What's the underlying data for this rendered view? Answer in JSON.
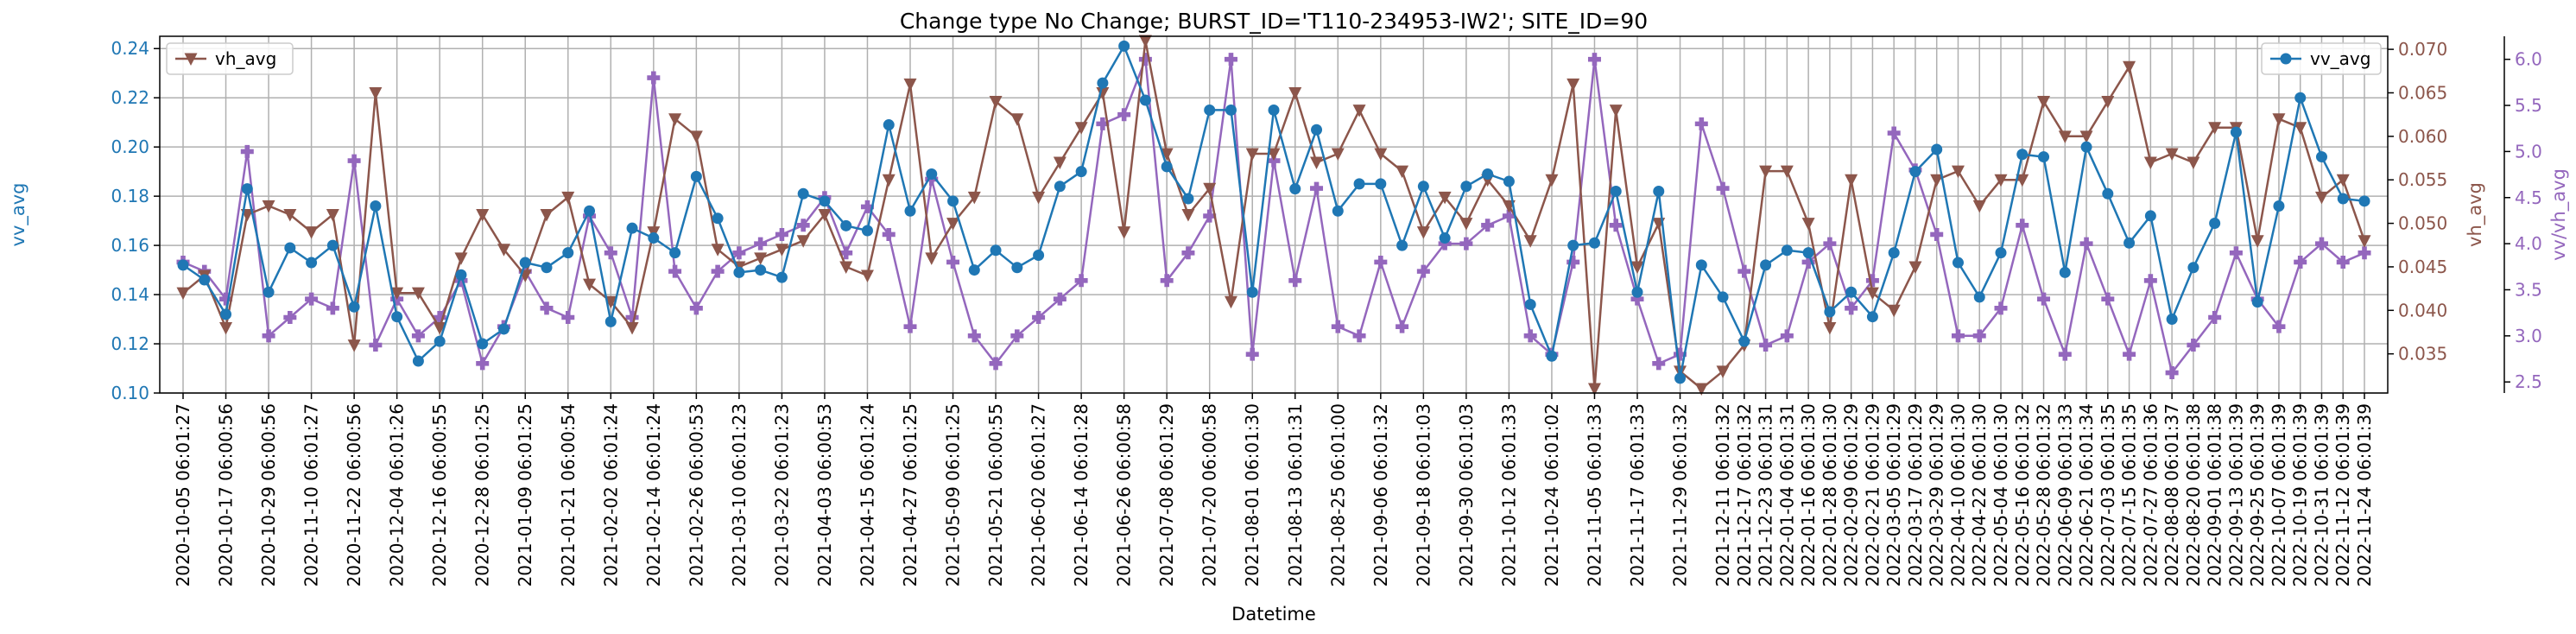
{
  "chart_data": {
    "type": "line",
    "title": "Change type No Change; BURST_ID='T110-234953-IW2'; SITE_ID=90",
    "xlabel": "Datetime",
    "x": [
      "2020-10-05 06:01:27",
      "2020-10-11 06:01:27",
      "2020-10-17 06:00:56",
      "2020-10-23 06:00:56",
      "2020-10-29 06:00:56",
      "2020-11-04 06:01:27",
      "2020-11-10 06:01:27",
      "2020-11-16 06:00:56",
      "2020-11-22 06:00:56",
      "2020-11-28 06:00:56",
      "2020-12-04 06:01:26",
      "2020-12-10 06:00:56",
      "2020-12-16 06:00:55",
      "2020-12-22 06:00:55",
      "2020-12-28 06:01:25",
      "2021-01-03 06:01:25",
      "2021-01-09 06:01:25",
      "2021-01-15 06:00:54",
      "2021-01-21 06:00:54",
      "2021-01-27 06:00:53",
      "2021-02-02 06:01:24",
      "2021-02-08 06:01:24",
      "2021-02-14 06:01:24",
      "2021-02-20 06:00:53",
      "2021-02-26 06:00:53",
      "2021-03-04 06:00:53",
      "2021-03-10 06:01:23",
      "2021-03-16 06:01:23",
      "2021-03-22 06:01:23",
      "2021-03-28 06:00:53",
      "2021-04-03 06:00:53",
      "2021-04-09 06:00:54",
      "2021-04-15 06:01:24",
      "2021-04-21 06:01:24",
      "2021-04-27 06:01:25",
      "2021-05-03 06:00:54",
      "2021-05-09 06:01:25",
      "2021-05-15 06:00:55",
      "2021-05-21 06:00:55",
      "2021-05-27 06:00:55",
      "2021-06-02 06:01:27",
      "2021-06-08 06:01:27",
      "2021-06-14 06:01:28",
      "2021-06-20 06:00:57",
      "2021-06-26 06:00:58",
      "2021-07-02 06:01:29",
      "2021-07-08 06:01:29",
      "2021-07-14 06:00:58",
      "2021-07-20 06:00:58",
      "2021-07-26 06:00:59",
      "2021-08-01 06:01:30",
      "2021-08-07 06:01:30",
      "2021-08-13 06:01:31",
      "2021-08-19 06:01:00",
      "2021-08-25 06:01:00",
      "2021-08-31 06:01:31",
      "2021-09-06 06:01:32",
      "2021-09-12 06:01:02",
      "2021-09-18 06:01:03",
      "2021-09-24 06:01:02",
      "2021-09-30 06:01:03",
      "2021-10-06 06:01:32",
      "2021-10-12 06:01:33",
      "2021-10-18 06:01:02",
      "2021-10-24 06:01:02",
      "2021-10-30 06:01:03",
      "2021-11-05 06:01:33",
      "2021-11-11 06:01:03",
      "2021-11-17 06:01:33",
      "2021-11-23 06:01:32",
      "2021-11-29 06:01:32",
      "2021-12-05 06:01:32",
      "2021-12-11 06:01:32",
      "2021-12-17 06:01:32",
      "2021-12-23 06:01:31",
      "2022-01-04 06:01:31",
      "2022-01-16 06:01:30",
      "2022-01-28 06:01:30",
      "2022-02-09 06:01:29",
      "2022-02-21 06:01:29",
      "2022-03-05 06:01:29",
      "2022-03-17 06:01:29",
      "2022-03-29 06:01:29",
      "2022-04-10 06:01:30",
      "2022-04-22 06:01:30",
      "2022-05-04 06:01:30",
      "2022-05-16 06:01:32",
      "2022-05-28 06:01:32",
      "2022-06-09 06:01:33",
      "2022-06-21 06:01:34",
      "2022-07-03 06:01:35",
      "2022-07-15 06:01:35",
      "2022-07-27 06:01:36",
      "2022-08-08 06:01:37",
      "2022-08-20 06:01:38",
      "2022-09-01 06:01:38",
      "2022-09-13 06:01:39",
      "2022-09-25 06:01:39",
      "2022-10-07 06:01:39",
      "2022-10-19 06:01:39",
      "2022-10-31 06:01:39",
      "2022-11-12 06:01:39",
      "2022-11-24 06:01:39"
    ],
    "x_tick_indices": [
      0,
      2,
      4,
      6,
      8,
      10,
      12,
      14,
      16,
      18,
      20,
      22,
      24,
      26,
      28,
      30,
      32,
      34,
      36,
      38,
      40,
      42,
      44,
      46,
      48,
      50,
      52,
      54,
      56,
      58,
      60,
      62,
      64,
      66,
      68,
      70,
      72,
      73,
      74,
      75,
      76,
      77,
      78,
      79,
      80,
      81,
      82,
      83,
      84,
      85,
      86,
      87,
      88,
      89,
      90,
      91,
      92,
      93,
      94,
      95,
      96,
      97,
      98,
      99,
      100,
      101,
      102
    ],
    "x_tick_labels": [
      "2020-10-05 06:01:27",
      "2020-10-17 06:00:56",
      "2020-10-29 06:00:56",
      "2020-11-10 06:01:27",
      "2020-11-22 06:00:56",
      "2020-12-04 06:01:26",
      "2020-12-16 06:00:55",
      "2020-12-28 06:01:25",
      "2021-01-09 06:01:25",
      "2021-01-21 06:00:54",
      "2021-02-02 06:01:24",
      "2021-02-14 06:01:24",
      "2021-02-26 06:00:53",
      "2021-03-10 06:01:23",
      "2021-03-22 06:01:23",
      "2021-04-03 06:00:53",
      "2021-04-15 06:01:24",
      "2021-04-27 06:01:25",
      "2021-05-09 06:01:25",
      "2021-05-21 06:00:55",
      "2021-06-02 06:01:27",
      "2021-06-14 06:01:28",
      "2021-06-26 06:00:58",
      "2021-07-08 06:01:29",
      "2021-07-20 06:00:58",
      "2021-08-01 06:01:30",
      "2021-08-13 06:01:31",
      "2021-08-25 06:01:00",
      "2021-09-06 06:01:32",
      "2021-09-18 06:01:03",
      "2021-09-30 06:01:03",
      "2021-10-12 06:01:33",
      "2021-10-24 06:01:02",
      "2021-11-05 06:01:33",
      "2021-11-17 06:01:33",
      "2021-11-29 06:01:32",
      "2021-12-11 06:01:32",
      "2021-12-17 06:01:32",
      "2021-12-23 06:01:31",
      "2022-01-04 06:01:31",
      "2022-01-16 06:01:30",
      "2022-01-28 06:01:30",
      "2022-02-09 06:01:29",
      "2022-02-21 06:01:29",
      "2022-03-05 06:01:29",
      "2022-03-17 06:01:29",
      "2022-03-29 06:01:29",
      "2022-04-10 06:01:30",
      "2022-04-22 06:01:30",
      "2022-05-04 06:01:30",
      "2022-05-16 06:01:32",
      "2022-05-28 06:01:32",
      "2022-06-09 06:01:33",
      "2022-06-21 06:01:34",
      "2022-07-03 06:01:35",
      "2022-07-15 06:01:35",
      "2022-07-27 06:01:36",
      "2022-08-08 06:01:37",
      "2022-08-20 06:01:38",
      "2022-09-01 06:01:38",
      "2022-09-13 06:01:39",
      "2022-09-25 06:01:39",
      "2022-10-07 06:01:39",
      "2022-10-19 06:01:39",
      "2022-10-31 06:01:39",
      "2022-11-12 06:01:39",
      "2022-11-24 06:01:39"
    ],
    "series": [
      {
        "name": "vv_avg",
        "axis": "left",
        "ylabel": "vv_avg",
        "ylim": [
          0.1,
          0.245
        ],
        "yticks": [
          0.1,
          0.12,
          0.14,
          0.16,
          0.18,
          0.2,
          0.22,
          0.24
        ],
        "ytick_labels": [
          "0.10",
          "0.12",
          "0.14",
          "0.16",
          "0.18",
          "0.20",
          "0.22",
          "0.24"
        ],
        "color": "#1f77b4",
        "marker": "circle",
        "legend": "top-right",
        "values": [
          0.152,
          0.146,
          0.132,
          0.183,
          0.141,
          0.159,
          0.153,
          0.16,
          0.135,
          0.176,
          0.131,
          0.113,
          0.121,
          0.148,
          0.12,
          0.126,
          0.153,
          0.151,
          0.157,
          0.174,
          0.129,
          0.167,
          0.163,
          0.157,
          0.188,
          0.171,
          0.149,
          0.15,
          0.147,
          0.181,
          0.178,
          0.168,
          0.166,
          0.209,
          0.174,
          0.189,
          0.178,
          0.15,
          0.158,
          0.151,
          0.156,
          0.184,
          0.19,
          0.226,
          0.241,
          0.219,
          0.192,
          0.179,
          0.215,
          0.215,
          0.141,
          0.215,
          0.183,
          0.207,
          0.174,
          0.185,
          0.185,
          0.16,
          0.184,
          0.163,
          0.184,
          0.189,
          0.186,
          0.136,
          0.115,
          0.16,
          0.161,
          0.182,
          0.141,
          0.182,
          0.106,
          0.152,
          0.139,
          0.121,
          0.152,
          0.158,
          0.157,
          0.133,
          0.141,
          0.131,
          0.157,
          0.19,
          0.199,
          0.153,
          0.139,
          0.157,
          0.197,
          0.196,
          0.149,
          0.2,
          0.181,
          0.161,
          0.172,
          0.13,
          0.151,
          0.169,
          0.206,
          0.137,
          0.176,
          0.22,
          0.196,
          0.179,
          0.178
        ]
      },
      {
        "name": "vh_avg",
        "axis": "right",
        "ylabel": "vh_avg",
        "ylim": [
          0.0305,
          0.0715
        ],
        "yticks": [
          0.035,
          0.04,
          0.045,
          0.05,
          0.055,
          0.06,
          0.065,
          0.07
        ],
        "ytick_labels": [
          "0.035",
          "0.040",
          "0.045",
          "0.050",
          "0.055",
          "0.060",
          "0.065",
          "0.070"
        ],
        "color": "#8c564b",
        "marker": "triangle-down",
        "legend": "top-left",
        "values": [
          0.042,
          0.044,
          0.038,
          0.051,
          0.052,
          0.051,
          0.049,
          0.051,
          0.036,
          0.065,
          0.042,
          0.042,
          0.038,
          0.046,
          0.051,
          0.047,
          0.044,
          0.051,
          0.053,
          0.043,
          0.041,
          0.038,
          0.049,
          0.062,
          0.06,
          0.047,
          0.045,
          0.046,
          0.047,
          0.048,
          0.051,
          0.045,
          0.044,
          0.055,
          0.066,
          0.046,
          0.05,
          0.053,
          0.064,
          0.062,
          0.053,
          0.057,
          0.061,
          0.065,
          0.049,
          0.071,
          0.058,
          0.051,
          0.054,
          0.041,
          0.058,
          0.058,
          0.065,
          0.057,
          0.058,
          0.063,
          0.058,
          0.056,
          0.049,
          0.053,
          0.05,
          0.055,
          0.052,
          0.048,
          0.055,
          0.066,
          0.031,
          0.063,
          0.045,
          0.05,
          0.033,
          0.031,
          0.033,
          0.036,
          0.056,
          0.056,
          0.05,
          0.038,
          0.055,
          0.042,
          0.04,
          0.045,
          0.055,
          0.056,
          0.052,
          0.055,
          0.055,
          0.064,
          0.06,
          0.06,
          0.064,
          0.068,
          0.057,
          0.058,
          0.057,
          0.061,
          0.061,
          0.048,
          0.062,
          0.061,
          0.053,
          0.055,
          0.048
        ]
      },
      {
        "name": "vv/vh_avg",
        "axis": "right-outer",
        "ylabel": "vv/vh_avg",
        "ylim": [
          2.38,
          6.25
        ],
        "yticks": [
          2.5,
          3.0,
          3.5,
          4.0,
          4.5,
          5.0,
          5.5,
          6.0
        ],
        "ytick_labels": [
          "2.5",
          "3.0",
          "3.5",
          "4.0",
          "4.5",
          "5.0",
          "5.5",
          "6.0"
        ],
        "color": "#9467bd",
        "marker": "plus",
        "values": [
          3.8,
          3.7,
          3.4,
          5.0,
          3.0,
          3.2,
          3.4,
          3.3,
          4.9,
          2.9,
          3.4,
          3.0,
          3.2,
          3.6,
          2.7,
          3.1,
          3.7,
          3.3,
          3.2,
          4.3,
          3.9,
          3.2,
          5.8,
          3.7,
          3.3,
          3.7,
          3.9,
          4.0,
          4.1,
          4.2,
          4.5,
          3.9,
          4.4,
          4.1,
          3.1,
          4.7,
          3.8,
          3.0,
          2.7,
          3.0,
          3.2,
          3.4,
          3.6,
          5.3,
          5.4,
          6.0,
          3.6,
          3.9,
          4.3,
          6.0,
          2.8,
          4.9,
          3.6,
          4.6,
          3.1,
          3.0,
          3.8,
          3.1,
          3.7,
          4.0,
          4.0,
          4.2,
          4.3,
          3.0,
          2.8,
          3.8,
          6.0,
          4.2,
          3.4,
          2.7,
          2.8,
          5.3,
          4.6,
          3.7,
          2.9,
          3.0,
          3.8,
          4.0,
          3.3,
          3.6,
          5.2,
          4.8,
          4.1,
          3.0,
          3.0,
          3.3,
          4.2,
          3.4,
          2.8,
          4.0,
          3.4,
          2.8,
          3.6,
          2.6,
          2.9,
          3.2,
          3.9,
          3.4,
          3.1,
          3.8,
          4.0,
          3.8,
          3.9
        ]
      }
    ],
    "grid": true
  }
}
